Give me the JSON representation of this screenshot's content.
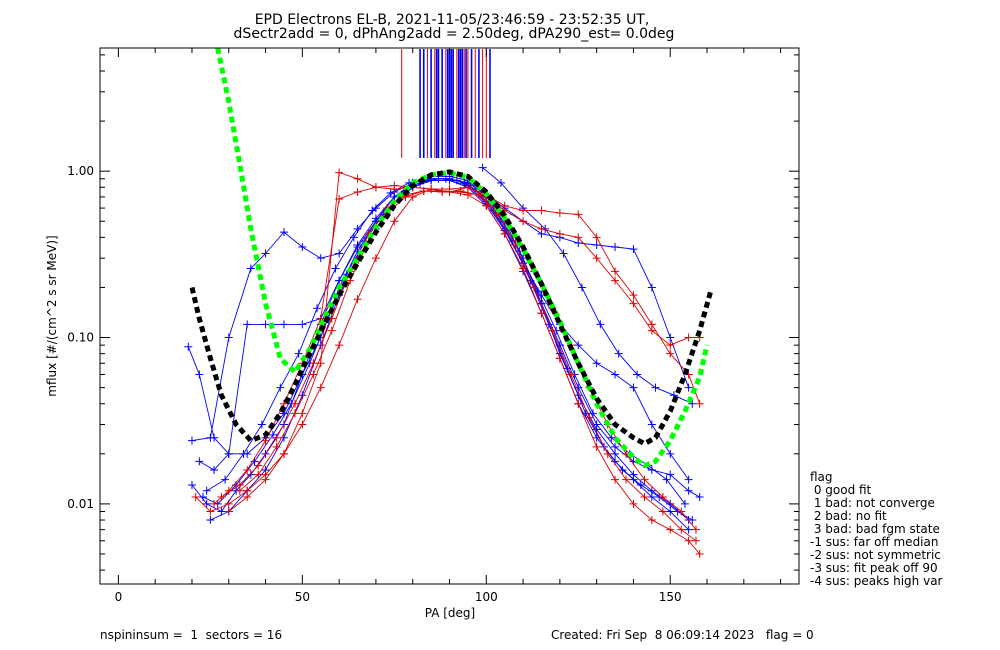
{
  "header": {
    "title_line1": "EPD Electrons EL-B, 2021-11-05/23:46:59 - 23:52:35 UT,",
    "title_line2": "dSectr2add = 0, dPhAng2add = 2.50deg, dPA290_est=    0.0deg"
  },
  "footer": {
    "left": "nspininsum =  1  sectors = 16",
    "right": "Created: Fri Sep  8 06:09:14 2023   flag = 0"
  },
  "legend": {
    "title": "flag",
    "items": [
      " 0 good fit",
      " 1 bad: not converge",
      " 2 bad: no fit",
      " 3 bad: bad fgm state",
      "-1 sus: far off median",
      "-2 sus: not symmetric",
      "-3 sus: fit peak off 90",
      "-4 sus: peaks high var"
    ]
  },
  "chart_data": {
    "type": "line",
    "xlabel": "PA [deg]",
    "ylabel": "mflux [#/(cm^2 s sr MeV)]",
    "xlim": [
      -5,
      185
    ],
    "ylim": [
      0.0033,
      5.5
    ],
    "yscale": "log",
    "x_ticks": [
      0,
      50,
      100,
      150
    ],
    "x_tick_labels": [
      "0",
      "50",
      "100",
      "150"
    ],
    "y_ticks": [
      0.01,
      0.1,
      1.0
    ],
    "y_tick_labels": [
      "0.01",
      "0.10",
      "1.00"
    ],
    "grid": false,
    "legend_position": "right-bottom-outside",
    "colors": {
      "red": "#e00000",
      "blue": "#0000ff",
      "green": "#00ff00",
      "black": "#000000"
    },
    "fits": [
      {
        "color": "#00ff00",
        "style": "dashed",
        "x": [
          27,
          30,
          33,
          36,
          40,
          44,
          48,
          52,
          56,
          60,
          65,
          70,
          75,
          80,
          85,
          90,
          95,
          100,
          105,
          110,
          115,
          120,
          125,
          130,
          135,
          140,
          143,
          146,
          150,
          154,
          158,
          160
        ],
        "y": [
          5.5,
          2.6,
          1.1,
          0.45,
          0.16,
          0.075,
          0.062,
          0.085,
          0.13,
          0.2,
          0.3,
          0.46,
          0.66,
          0.85,
          0.95,
          0.98,
          0.92,
          0.73,
          0.52,
          0.34,
          0.21,
          0.125,
          0.07,
          0.04,
          0.025,
          0.019,
          0.017,
          0.018,
          0.024,
          0.036,
          0.058,
          0.09
        ]
      },
      {
        "color": "#000000",
        "style": "dashed",
        "x": [
          20,
          22,
          25,
          28,
          32,
          36,
          40,
          44,
          48,
          52,
          56,
          60,
          65,
          70,
          75,
          80,
          85,
          90,
          95,
          100,
          105,
          110,
          115,
          120,
          125,
          130,
          135,
          140,
          143,
          146,
          150,
          154,
          158,
          161
        ],
        "y": [
          0.2,
          0.13,
          0.075,
          0.045,
          0.03,
          0.024,
          0.026,
          0.035,
          0.052,
          0.08,
          0.12,
          0.18,
          0.28,
          0.43,
          0.62,
          0.82,
          0.95,
          0.99,
          0.93,
          0.75,
          0.54,
          0.35,
          0.21,
          0.12,
          0.07,
          0.043,
          0.03,
          0.025,
          0.023,
          0.025,
          0.036,
          0.06,
          0.11,
          0.19
        ]
      }
    ],
    "series": [
      {
        "color": "#0000ff",
        "x": [
          19,
          22,
          26,
          30,
          35,
          40,
          45,
          50,
          55,
          60,
          65,
          70,
          75,
          80,
          85,
          90,
          95,
          100,
          105,
          110,
          115,
          120,
          125,
          130,
          135,
          140,
          145,
          150,
          155,
          158
        ],
        "y": [
          0.088,
          0.06,
          0.025,
          0.02,
          0.02,
          0.025,
          0.035,
          0.06,
          0.1,
          0.2,
          0.33,
          0.5,
          0.7,
          0.85,
          0.93,
          0.93,
          0.88,
          0.7,
          0.5,
          0.3,
          0.16,
          0.09,
          0.05,
          0.03,
          0.022,
          0.018,
          0.016,
          0.015,
          0.012,
          0.011
        ]
      },
      {
        "color": "#0000ff",
        "x": [
          20,
          25,
          30,
          36,
          40,
          45,
          50,
          55,
          60,
          65,
          70,
          75,
          80,
          85,
          90,
          95,
          100,
          105,
          110,
          115,
          120,
          125,
          130,
          135,
          140,
          145,
          150,
          155
        ],
        "y": [
          0.024,
          0.025,
          0.1,
          0.26,
          0.32,
          0.43,
          0.35,
          0.3,
          0.32,
          0.45,
          0.6,
          0.75,
          0.85,
          0.9,
          0.9,
          0.85,
          0.72,
          0.6,
          0.5,
          0.42,
          0.4,
          0.37,
          0.36,
          0.35,
          0.34,
          0.2,
          0.1,
          0.05
        ]
      },
      {
        "color": "#0000ff",
        "x": [
          20,
          24,
          28,
          32,
          36,
          40,
          45,
          50,
          55,
          60,
          65,
          70,
          75,
          80,
          85,
          90,
          95,
          100,
          105,
          110,
          115,
          120,
          125,
          130,
          135,
          140,
          145,
          150,
          155
        ],
        "y": [
          0.013,
          0.01,
          0.009,
          0.012,
          0.015,
          0.02,
          0.03,
          0.06,
          0.12,
          0.22,
          0.35,
          0.5,
          0.7,
          0.82,
          0.9,
          0.9,
          0.84,
          0.66,
          0.45,
          0.28,
          0.16,
          0.08,
          0.045,
          0.028,
          0.02,
          0.015,
          0.012,
          0.01,
          0.008
        ]
      },
      {
        "color": "#0000ff",
        "x": [
          22,
          26,
          30,
          35,
          40,
          45,
          50,
          55,
          60,
          65,
          70,
          75,
          80,
          85,
          90,
          95,
          100,
          105,
          110,
          115,
          120,
          125,
          130,
          135,
          140,
          145,
          150,
          155
        ],
        "y": [
          0.018,
          0.016,
          0.02,
          0.12,
          0.12,
          0.12,
          0.12,
          0.13,
          0.22,
          0.36,
          0.52,
          0.7,
          0.83,
          0.88,
          0.88,
          0.82,
          0.64,
          0.44,
          0.28,
          0.18,
          0.12,
          0.09,
          0.07,
          0.06,
          0.05,
          0.03,
          0.02,
          0.014
        ]
      },
      {
        "color": "#0000ff",
        "x": [
          25,
          30,
          35,
          40,
          45,
          50,
          55,
          60,
          65,
          70,
          75,
          80,
          85,
          90,
          95,
          100,
          105,
          110,
          115,
          120,
          125,
          130,
          135,
          140,
          145,
          150,
          155
        ],
        "y": [
          0.008,
          0.009,
          0.012,
          0.016,
          0.025,
          0.045,
          0.09,
          0.18,
          0.3,
          0.45,
          0.65,
          0.8,
          0.88,
          0.88,
          0.8,
          0.62,
          0.42,
          0.25,
          0.14,
          0.075,
          0.04,
          0.025,
          0.018,
          0.014,
          0.011,
          0.009,
          0.007
        ]
      },
      {
        "color": "#0000ff",
        "x": [
          23,
          27,
          32,
          37,
          42,
          47,
          52,
          57,
          62,
          67,
          72,
          77,
          82,
          87,
          92,
          97,
          102,
          107,
          112,
          117,
          122,
          127,
          132,
          137,
          142,
          147,
          152,
          156
        ],
        "y": [
          0.011,
          0.01,
          0.013,
          0.018,
          0.026,
          0.04,
          0.07,
          0.13,
          0.24,
          0.38,
          0.55,
          0.72,
          0.84,
          0.9,
          0.88,
          0.78,
          0.58,
          0.38,
          0.22,
          0.12,
          0.065,
          0.035,
          0.022,
          0.016,
          0.013,
          0.011,
          0.009,
          0.008
        ]
      },
      {
        "color": "#0000ff",
        "x": [
          24,
          29,
          34,
          39,
          44,
          49,
          54,
          59,
          64,
          69,
          74,
          79,
          84,
          89,
          94,
          99,
          104,
          109,
          114,
          119,
          124,
          129,
          134,
          139,
          144,
          149,
          154
        ],
        "y": [
          0.012,
          0.014,
          0.02,
          0.03,
          0.05,
          0.08,
          0.15,
          0.26,
          0.4,
          0.58,
          0.74,
          0.85,
          0.9,
          0.9,
          0.86,
          0.72,
          0.52,
          0.33,
          0.19,
          0.11,
          0.06,
          0.035,
          0.025,
          0.02,
          0.017,
          0.014,
          0.01
        ]
      },
      {
        "color": "#0000ff",
        "x": [
          99,
          104,
          110,
          116,
          121,
          126,
          131,
          136,
          141,
          146,
          151,
          156
        ],
        "y": [
          1.05,
          0.85,
          0.6,
          0.45,
          0.32,
          0.2,
          0.12,
          0.08,
          0.06,
          0.05,
          0.045,
          0.04
        ]
      },
      {
        "color": "#e00000",
        "x": [
          21,
          25,
          30,
          35,
          40,
          45,
          50,
          55,
          60,
          65,
          70,
          75,
          80,
          85,
          90,
          95,
          100,
          105,
          110,
          115,
          120,
          125,
          130,
          135,
          140,
          145,
          150,
          155,
          158
        ],
        "y": [
          0.011,
          0.009,
          0.01,
          0.012,
          0.015,
          0.02,
          0.03,
          0.05,
          0.09,
          0.17,
          0.3,
          0.5,
          0.7,
          0.78,
          0.75,
          0.72,
          0.62,
          0.42,
          0.26,
          0.14,
          0.075,
          0.04,
          0.022,
          0.014,
          0.01,
          0.008,
          0.007,
          0.006,
          0.005
        ]
      },
      {
        "color": "#e00000",
        "x": [
          30,
          35,
          40,
          45,
          50,
          55,
          60,
          65,
          70,
          75,
          80,
          85,
          90,
          95,
          100,
          105,
          110,
          115,
          120,
          125,
          130,
          135,
          140,
          145,
          150,
          155,
          158
        ],
        "y": [
          0.009,
          0.011,
          0.014,
          0.02,
          0.035,
          0.07,
          0.98,
          0.9,
          0.8,
          0.78,
          0.8,
          0.78,
          0.75,
          0.8,
          0.72,
          0.62,
          0.58,
          0.58,
          0.56,
          0.55,
          0.4,
          0.25,
          0.18,
          0.12,
          0.08,
          0.06,
          0.04
        ]
      },
      {
        "color": "#e00000",
        "x": [
          26,
          30,
          35,
          40,
          45,
          50,
          55,
          60,
          65,
          70,
          75,
          80,
          85,
          90,
          95,
          100,
          105,
          110,
          115,
          120,
          125,
          130,
          135,
          140,
          145,
          150,
          155,
          158
        ],
        "y": [
          0.01,
          0.012,
          0.016,
          0.024,
          0.04,
          0.07,
          0.13,
          0.68,
          0.75,
          0.8,
          0.82,
          0.8,
          0.78,
          0.78,
          0.8,
          0.7,
          0.58,
          0.5,
          0.45,
          0.42,
          0.4,
          0.3,
          0.22,
          0.16,
          0.11,
          0.09,
          0.1,
          0.1
        ]
      },
      {
        "color": "#e00000",
        "x": [
          28,
          33,
          38,
          43,
          48,
          53,
          58,
          63,
          68,
          73,
          78,
          83,
          88,
          93,
          98,
          103,
          108,
          113,
          118,
          123,
          128,
          133,
          138,
          143,
          148,
          153,
          157
        ],
        "y": [
          0.011,
          0.013,
          0.017,
          0.025,
          0.04,
          0.07,
          0.13,
          0.25,
          0.42,
          0.6,
          0.72,
          0.76,
          0.75,
          0.76,
          0.72,
          0.55,
          0.36,
          0.2,
          0.11,
          0.06,
          0.033,
          0.02,
          0.014,
          0.011,
          0.009,
          0.007,
          0.006
        ]
      },
      {
        "color": "#e00000",
        "x": [
          33,
          38,
          43,
          48,
          53,
          58,
          63,
          68,
          73,
          78,
          83,
          88,
          93,
          98,
          103,
          108,
          113,
          118,
          123,
          128,
          133,
          138,
          143,
          148,
          153,
          157
        ],
        "y": [
          0.012,
          0.015,
          0.022,
          0.035,
          0.06,
          0.11,
          0.22,
          0.38,
          0.56,
          0.7,
          0.76,
          0.76,
          0.75,
          0.72,
          0.58,
          0.4,
          0.25,
          0.15,
          0.09,
          0.05,
          0.03,
          0.02,
          0.014,
          0.011,
          0.009,
          0.007
        ]
      }
    ],
    "spikes": {
      "red_x": [
        77,
        84,
        86,
        88,
        89,
        91,
        92,
        94,
        95,
        97,
        99,
        100
      ],
      "blue_x": [
        82,
        83,
        85,
        86.5,
        87,
        88,
        89.5,
        90,
        90.5,
        91,
        92.5,
        93,
        93.5,
        94.5,
        96,
        98,
        101
      ],
      "y_from": 1.2,
      "y_to": 5.5
    }
  }
}
